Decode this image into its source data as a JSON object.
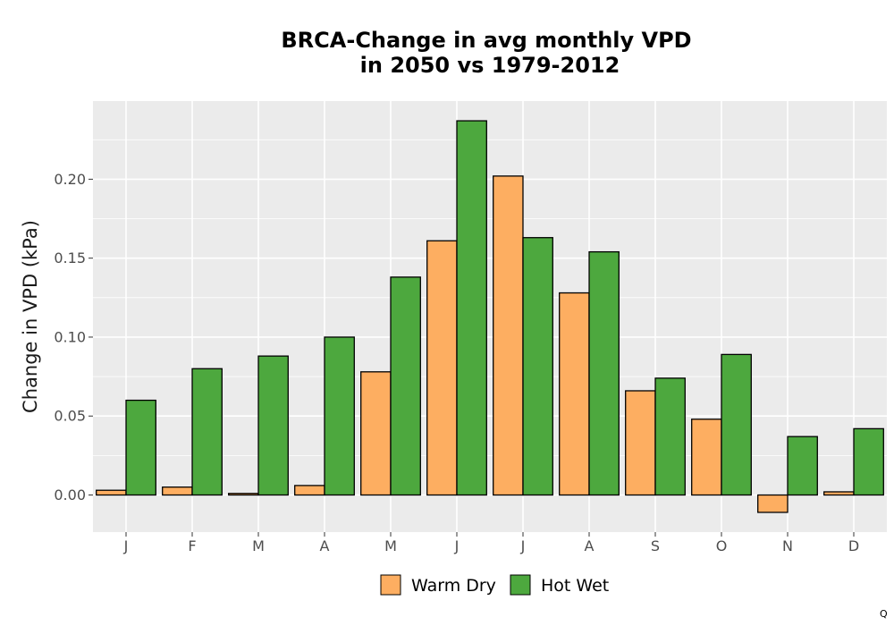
{
  "colors": {
    "panel_bg": "#EBEBEB",
    "grid": "#FFFFFF",
    "bar_outline": "#000000",
    "warm_dry": "#FDAE61",
    "hot_wet": "#4DA83E"
  },
  "corner_mark": "Q",
  "chart_data": {
    "type": "bar",
    "title": "BRCA-Change in avg monthly VPD",
    "subtitle": "in 2050 vs 1979-2012",
    "xlabel": "",
    "ylabel": "Change in VPD (kPa)",
    "categories": [
      "J",
      "F",
      "M",
      "A",
      "M",
      "J",
      "J",
      "A",
      "S",
      "O",
      "N",
      "D"
    ],
    "series": [
      {
        "name": "Warm Dry",
        "color": "#FDAE61",
        "values": [
          0.003,
          0.005,
          0.001,
          0.006,
          0.078,
          0.161,
          0.202,
          0.128,
          0.066,
          0.048,
          -0.011,
          0.002
        ]
      },
      {
        "name": "Hot Wet",
        "color": "#4DA83E",
        "values": [
          0.06,
          0.08,
          0.088,
          0.1,
          0.138,
          0.237,
          0.163,
          0.154,
          0.074,
          0.089,
          0.037,
          0.042
        ]
      }
    ],
    "yticks": [
      0.0,
      0.05,
      0.1,
      0.15,
      0.2
    ],
    "ytick_labels": [
      "0.00",
      "0.05",
      "0.10",
      "0.15",
      "0.20"
    ],
    "ylim": [
      -0.0235,
      0.2495
    ],
    "grid": true,
    "legend_position": "bottom"
  }
}
